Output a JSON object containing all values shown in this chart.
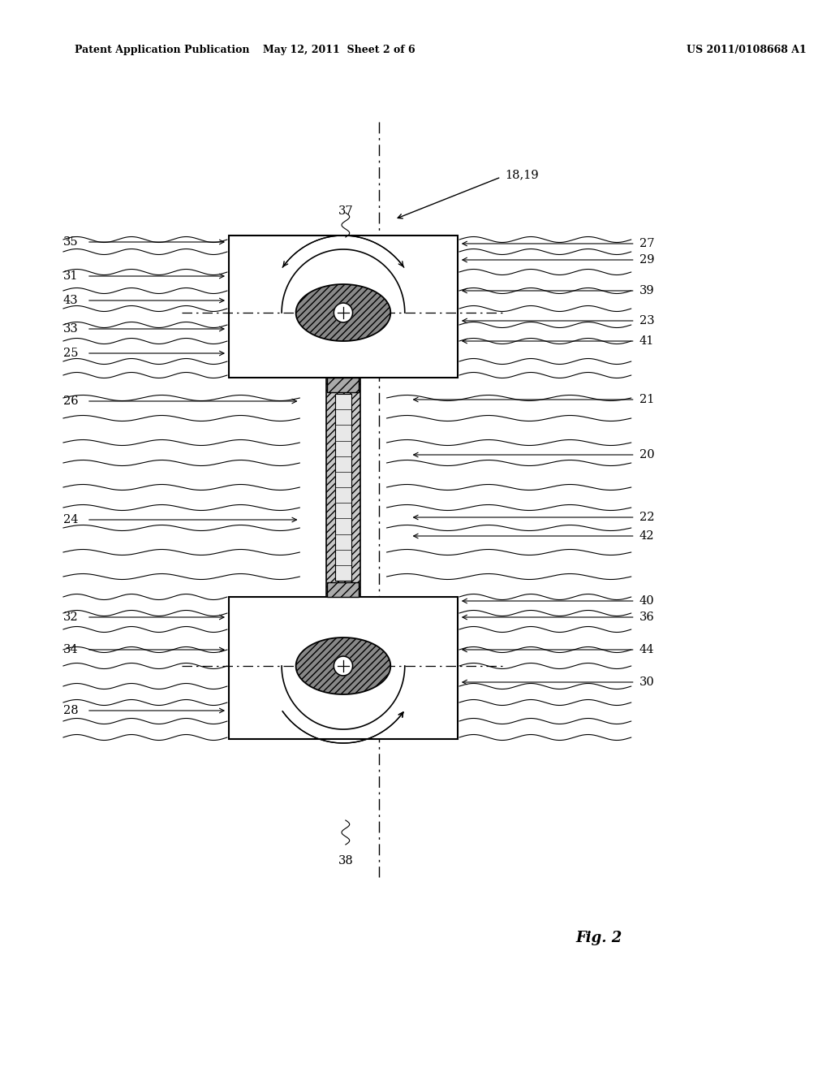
{
  "bg_color": "#ffffff",
  "header_left": "Patent Application Publication",
  "header_mid": "May 12, 2011  Sheet 2 of 6",
  "header_right": "US 2011/0108668 A1",
  "fig_label": "Fig. 2",
  "fig_w": 10.24,
  "fig_h": 13.2,
  "dpi": 100
}
